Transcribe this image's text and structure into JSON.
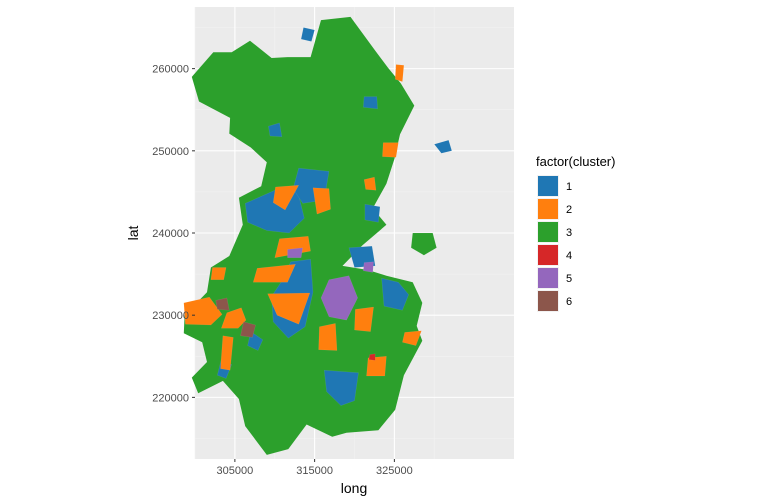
{
  "chart_data": {
    "type": "choropleth",
    "xlabel": "long",
    "ylabel": "lat",
    "xticks": [
      305000,
      315000,
      325000
    ],
    "yticks": [
      220000,
      230000,
      240000,
      250000,
      260000
    ],
    "xlim": [
      300000,
      340000
    ],
    "ylim": [
      212500,
      267500
    ],
    "background": "#ebebeb",
    "grid": true,
    "legend": {
      "title": "factor(cluster)",
      "position": "right",
      "entries": [
        {
          "label": "1",
          "color": "#1f77b4"
        },
        {
          "label": "2",
          "color": "#ff7f0e"
        },
        {
          "label": "3",
          "color": "#2ca02c"
        },
        {
          "label": "4",
          "color": "#d62728"
        },
        {
          "label": "5",
          "color": "#9467bd"
        },
        {
          "label": "6",
          "color": "#8c564b"
        }
      ]
    },
    "regions": [
      {
        "cluster": 3,
        "points": [
          [
            315800,
            265900
          ],
          [
            319500,
            266300
          ],
          [
            322600,
            262200
          ],
          [
            324200,
            260100
          ],
          [
            325800,
            258200
          ],
          [
            327500,
            255500
          ],
          [
            325700,
            252000
          ],
          [
            325000,
            249000
          ],
          [
            324000,
            246000
          ],
          [
            322300,
            243000
          ],
          [
            324000,
            241000
          ],
          [
            321000,
            238500
          ],
          [
            318500,
            236000
          ],
          [
            321700,
            235500
          ],
          [
            324000,
            234800
          ],
          [
            327300,
            234000
          ],
          [
            328500,
            231500
          ],
          [
            327800,
            228700
          ],
          [
            328500,
            226900
          ],
          [
            326200,
            222700
          ],
          [
            325100,
            218500
          ],
          [
            323000,
            216000
          ],
          [
            319000,
            215700
          ],
          [
            317200,
            215200
          ],
          [
            314000,
            216700
          ],
          [
            311700,
            213700
          ],
          [
            309000,
            213000
          ],
          [
            306300,
            216500
          ],
          [
            305500,
            219800
          ],
          [
            303500,
            222000
          ],
          [
            300400,
            220500
          ],
          [
            299600,
            222400
          ],
          [
            301500,
            224300
          ],
          [
            300900,
            226700
          ],
          [
            298600,
            227800
          ],
          [
            298700,
            230000
          ],
          [
            301500,
            232800
          ],
          [
            302000,
            235800
          ],
          [
            304300,
            237200
          ],
          [
            306000,
            241000
          ],
          [
            305500,
            244300
          ],
          [
            308300,
            245700
          ],
          [
            309000,
            248600
          ],
          [
            307000,
            250400
          ],
          [
            304300,
            252100
          ],
          [
            304400,
            254000
          ],
          [
            300500,
            256000
          ],
          [
            299600,
            259000
          ],
          [
            302300,
            262000
          ],
          [
            304600,
            262000
          ],
          [
            306900,
            263400
          ],
          [
            309600,
            261300
          ],
          [
            311600,
            261400
          ],
          [
            314500,
            261400
          ]
        ]
      },
      {
        "cluster": 3,
        "points": [
          [
            327300,
            240000
          ],
          [
            329800,
            240000
          ],
          [
            330300,
            238200
          ],
          [
            328700,
            237300
          ],
          [
            327100,
            238200
          ]
        ]
      },
      {
        "cluster": 1,
        "points": [
          [
            330000,
            250800
          ],
          [
            331800,
            251300
          ],
          [
            332200,
            250000
          ],
          [
            330900,
            249700
          ]
        ]
      },
      {
        "cluster": 1,
        "points": [
          [
            306300,
            243600
          ],
          [
            310000,
            245200
          ],
          [
            312900,
            245000
          ],
          [
            313700,
            241800
          ],
          [
            311800,
            240000
          ],
          [
            309000,
            240300
          ],
          [
            306600,
            241300
          ]
        ]
      },
      {
        "cluster": 1,
        "points": [
          [
            312000,
            236500
          ],
          [
            314500,
            236800
          ],
          [
            314800,
            232800
          ],
          [
            313800,
            228600
          ],
          [
            311700,
            227200
          ],
          [
            309800,
            229200
          ],
          [
            309600,
            232300
          ],
          [
            311000,
            234300
          ]
        ]
      },
      {
        "cluster": 1,
        "points": [
          [
            313000,
            247900
          ],
          [
            316800,
            247500
          ],
          [
            316200,
            244000
          ],
          [
            313500,
            243600
          ],
          [
            312300,
            245400
          ]
        ]
      },
      {
        "cluster": 1,
        "points": [
          [
            313600,
            265000
          ],
          [
            315000,
            264700
          ],
          [
            314600,
            263300
          ],
          [
            313300,
            263600
          ]
        ]
      },
      {
        "cluster": 1,
        "points": [
          [
            321300,
            243500
          ],
          [
            323200,
            243200
          ],
          [
            323000,
            241300
          ],
          [
            321300,
            241600
          ]
        ]
      },
      {
        "cluster": 1,
        "points": [
          [
            316200,
            223300
          ],
          [
            320500,
            223000
          ],
          [
            320000,
            219600
          ],
          [
            318300,
            219000
          ],
          [
            316500,
            220700
          ]
        ]
      },
      {
        "cluster": 1,
        "points": [
          [
            303300,
            224600
          ],
          [
            304600,
            224000
          ],
          [
            303900,
            222300
          ],
          [
            302800,
            222700
          ]
        ]
      },
      {
        "cluster": 1,
        "points": [
          [
            307000,
            228000
          ],
          [
            308500,
            227000
          ],
          [
            307900,
            225700
          ],
          [
            306600,
            226300
          ]
        ]
      },
      {
        "cluster": 1,
        "points": [
          [
            323400,
            234500
          ],
          [
            325500,
            234000
          ],
          [
            326800,
            232500
          ],
          [
            326000,
            230600
          ],
          [
            323700,
            231100
          ]
        ]
      },
      {
        "cluster": 1,
        "points": [
          [
            321200,
            256600
          ],
          [
            322800,
            256600
          ],
          [
            322900,
            255100
          ],
          [
            321100,
            255300
          ]
        ]
      },
      {
        "cluster": 1,
        "points": [
          [
            309200,
            253000
          ],
          [
            310600,
            253400
          ],
          [
            310900,
            251700
          ],
          [
            309400,
            251800
          ]
        ]
      },
      {
        "cluster": 1,
        "points": [
          [
            319300,
            238200
          ],
          [
            322200,
            238400
          ],
          [
            322600,
            236000
          ],
          [
            320000,
            235800
          ]
        ]
      },
      {
        "cluster": 2,
        "points": [
          [
            310600,
            239300
          ],
          [
            314200,
            239600
          ],
          [
            314500,
            237800
          ],
          [
            310000,
            237000
          ]
        ]
      },
      {
        "cluster": 2,
        "points": [
          [
            309100,
            232600
          ],
          [
            314400,
            232700
          ],
          [
            313000,
            228900
          ],
          [
            310300,
            230000
          ]
        ]
      },
      {
        "cluster": 2,
        "points": [
          [
            307800,
            235700
          ],
          [
            312600,
            236200
          ],
          [
            311600,
            234000
          ],
          [
            307300,
            234000
          ]
        ]
      },
      {
        "cluster": 2,
        "points": [
          [
            310100,
            245600
          ],
          [
            313000,
            245800
          ],
          [
            311300,
            242800
          ],
          [
            309800,
            243700
          ]
        ]
      },
      {
        "cluster": 2,
        "points": [
          [
            314800,
            245500
          ],
          [
            316800,
            245400
          ],
          [
            317000,
            242900
          ],
          [
            315300,
            242300
          ]
        ]
      },
      {
        "cluster": 2,
        "points": [
          [
            304000,
            230300
          ],
          [
            305800,
            230900
          ],
          [
            306400,
            229400
          ],
          [
            305400,
            228400
          ],
          [
            303300,
            228400
          ]
        ]
      },
      {
        "cluster": 2,
        "points": [
          [
            298600,
            231500
          ],
          [
            301800,
            232200
          ],
          [
            303400,
            230100
          ],
          [
            302000,
            228800
          ],
          [
            298800,
            228900
          ]
        ]
      },
      {
        "cluster": 2,
        "points": [
          [
            302200,
            235800
          ],
          [
            303900,
            235800
          ],
          [
            303600,
            234300
          ],
          [
            302000,
            234300
          ]
        ]
      },
      {
        "cluster": 2,
        "points": [
          [
            303500,
            227500
          ],
          [
            304800,
            227300
          ],
          [
            304400,
            223300
          ],
          [
            303200,
            223500
          ]
        ]
      },
      {
        "cluster": 2,
        "points": [
          [
            315600,
            228600
          ],
          [
            317600,
            229000
          ],
          [
            317800,
            225700
          ],
          [
            315500,
            225800
          ]
        ]
      },
      {
        "cluster": 2,
        "points": [
          [
            320100,
            230700
          ],
          [
            322400,
            231000
          ],
          [
            322000,
            228000
          ],
          [
            320000,
            228200
          ]
        ]
      },
      {
        "cluster": 2,
        "points": [
          [
            321700,
            224800
          ],
          [
            324000,
            225000
          ],
          [
            323800,
            222600
          ],
          [
            321500,
            222600
          ]
        ]
      },
      {
        "cluster": 2,
        "points": [
          [
            323600,
            251000
          ],
          [
            325500,
            251000
          ],
          [
            325200,
            249200
          ],
          [
            323500,
            249300
          ]
        ]
      },
      {
        "cluster": 2,
        "points": [
          [
            325200,
            260500
          ],
          [
            326200,
            260400
          ],
          [
            326000,
            258400
          ],
          [
            325100,
            258700
          ]
        ]
      },
      {
        "cluster": 2,
        "points": [
          [
            326300,
            227900
          ],
          [
            328400,
            228100
          ],
          [
            327700,
            226300
          ],
          [
            326000,
            226700
          ]
        ]
      },
      {
        "cluster": 2,
        "points": [
          [
            321200,
            246500
          ],
          [
            322500,
            246800
          ],
          [
            322700,
            245200
          ],
          [
            321400,
            245300
          ]
        ]
      },
      {
        "cluster": 5,
        "points": [
          [
            316800,
            234300
          ],
          [
            319300,
            234800
          ],
          [
            320400,
            232100
          ],
          [
            319000,
            229400
          ],
          [
            316800,
            229800
          ],
          [
            315800,
            232100
          ]
        ]
      },
      {
        "cluster": 5,
        "points": [
          [
            311600,
            238000
          ],
          [
            313500,
            238200
          ],
          [
            313300,
            237000
          ],
          [
            311600,
            237000
          ]
        ]
      },
      {
        "cluster": 5,
        "points": [
          [
            321200,
            236400
          ],
          [
            322400,
            236500
          ],
          [
            322300,
            235200
          ],
          [
            321100,
            235400
          ]
        ]
      },
      {
        "cluster": 6,
        "points": [
          [
            302600,
            231800
          ],
          [
            304000,
            232100
          ],
          [
            304300,
            230600
          ],
          [
            302800,
            230700
          ]
        ]
      },
      {
        "cluster": 6,
        "points": [
          [
            306100,
            229200
          ],
          [
            307600,
            228800
          ],
          [
            307200,
            227300
          ],
          [
            305700,
            227500
          ]
        ]
      },
      {
        "cluster": 4,
        "points": [
          [
            321900,
            225200
          ],
          [
            322600,
            225300
          ],
          [
            322600,
            224500
          ],
          [
            321800,
            224600
          ]
        ]
      }
    ]
  }
}
